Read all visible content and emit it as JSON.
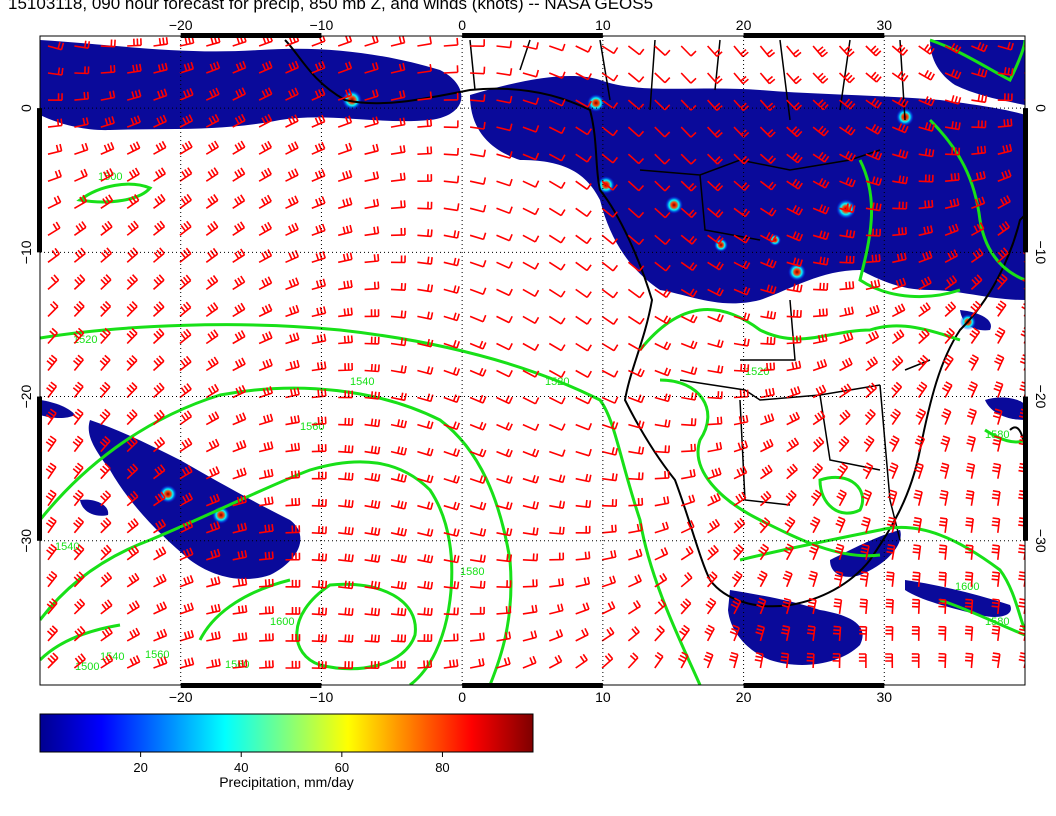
{
  "title": "15103118, 090 hour forecast for precip, 850 mb Z, and winds (knots) -- NASA GEOS5",
  "map": {
    "lon_range": [
      -30,
      40
    ],
    "lat_range": [
      -40,
      5
    ],
    "lon_ticks": [
      -20,
      -10,
      0,
      10,
      20,
      30
    ],
    "lat_ticks": [
      0,
      -10,
      -20,
      -30
    ],
    "lon_tick_labels": [
      "−20",
      "−10",
      "0",
      "10",
      "20",
      "30"
    ],
    "lat_tick_labels": [
      "0",
      "−10",
      "−20",
      "−30"
    ],
    "grid": "dotted",
    "land_outline_color": "#000000",
    "wind_barb_color": "#ff0000",
    "contour_color": "#00ee00"
  },
  "contour_labels": [
    "1500",
    "1520",
    "1540",
    "1560",
    "1580",
    "1520",
    "1540",
    "1560",
    "1600",
    "1520",
    "1540",
    "1560",
    "1580",
    "1500",
    "1600",
    "1580"
  ],
  "colorbar": {
    "min": 0,
    "max": 98,
    "ticks": [
      20,
      40,
      60,
      80
    ],
    "tick_labels": [
      "20",
      "40",
      "60",
      "80"
    ],
    "label": "Precipitation, mm/day",
    "colors": [
      "#00008f",
      "#0000ff",
      "#007fff",
      "#00ffff",
      "#7fff7f",
      "#ffff00",
      "#ff7f00",
      "#ff0000",
      "#7f0000"
    ]
  }
}
